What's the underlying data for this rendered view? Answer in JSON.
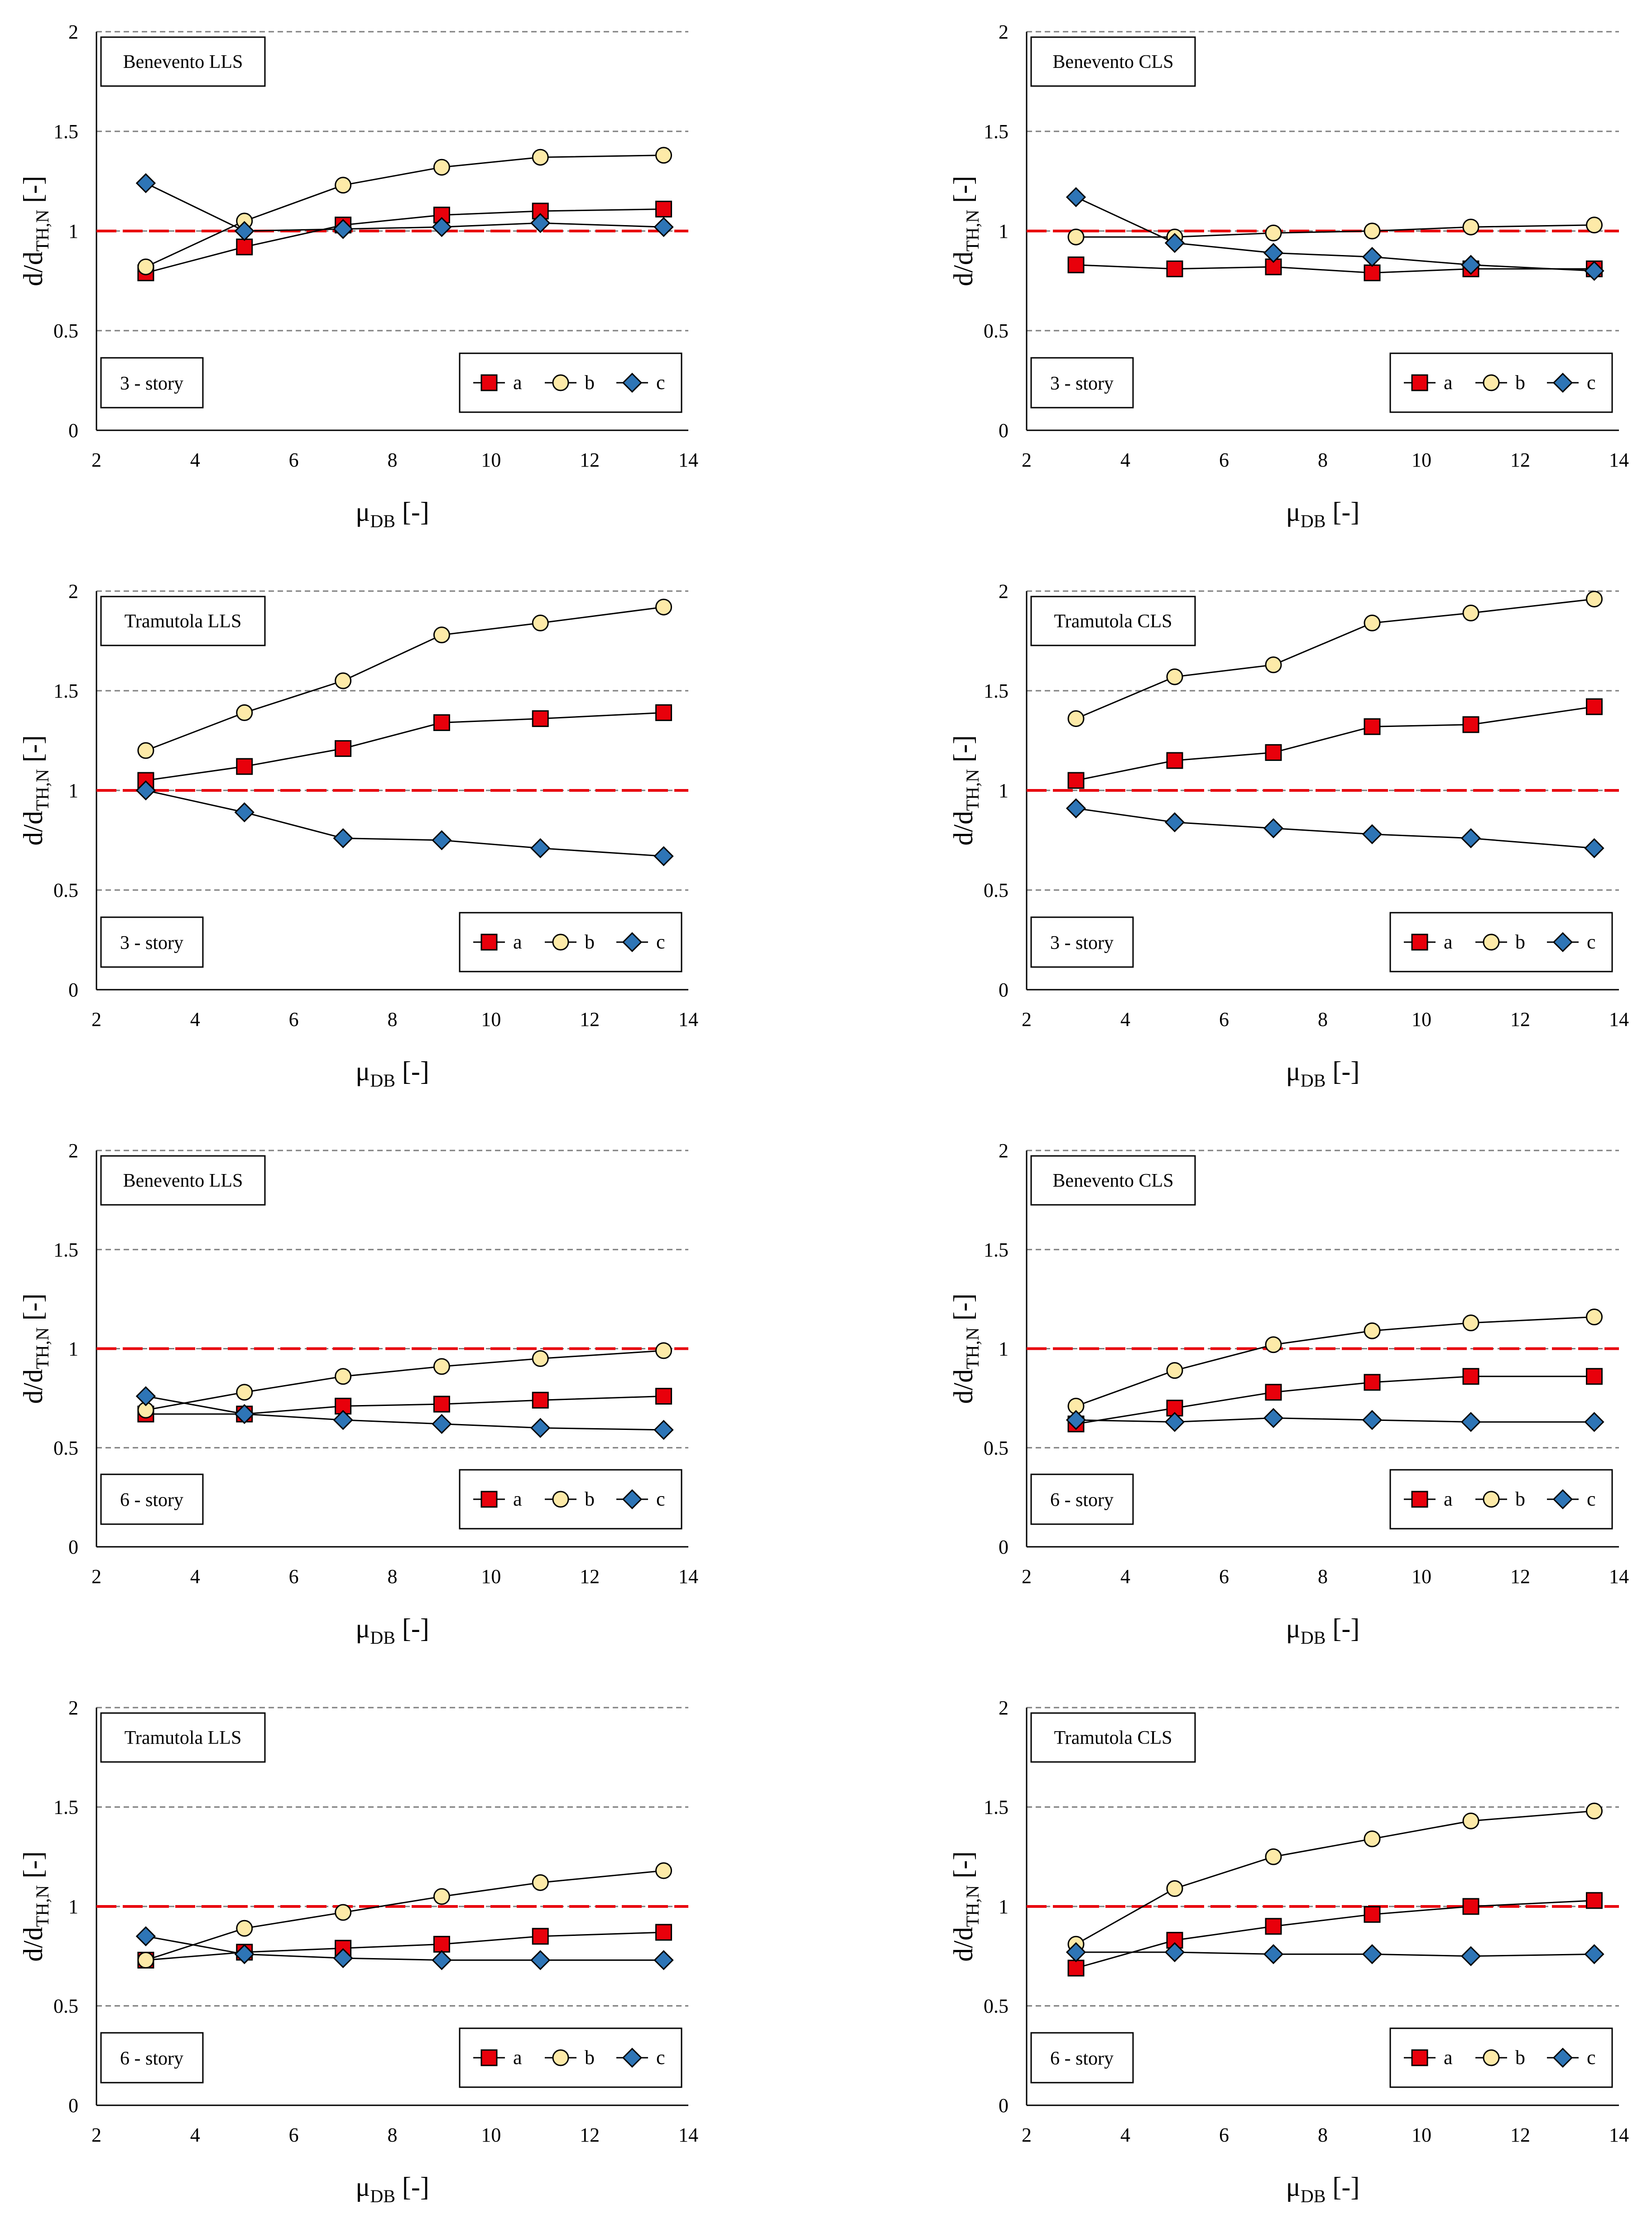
{
  "figure": {
    "xlabel": {
      "symbol": "μ",
      "subscript": "DB",
      "unit": " [-]"
    },
    "ylabel": {
      "symbol": "d/d",
      "subscript": "TH,N",
      "unit": " [-]"
    },
    "reference_line_value": 1
  },
  "colors": {
    "a": "#e8000b",
    "b": "#fdeaa8",
    "c": "#2e75b6",
    "reference": "#e8000b",
    "grid": "#7f7f7f"
  },
  "chart_data": [
    {
      "type": "line",
      "title": "Benevento LLS",
      "subtitle": "3 - story",
      "xlim": [
        2,
        14
      ],
      "ylim": [
        0,
        2
      ],
      "xticks": [
        "2",
        "4",
        "6",
        "8",
        "10",
        "12",
        "14"
      ],
      "yticks": [
        "0",
        "0.5",
        "1",
        "1.5",
        "2"
      ],
      "x": [
        3,
        5,
        7,
        9,
        11,
        13.5
      ],
      "series": [
        {
          "name": "a",
          "marker": "square",
          "values": [
            0.79,
            0.92,
            1.03,
            1.08,
            1.1,
            1.11
          ]
        },
        {
          "name": "b",
          "marker": "circle",
          "values": [
            0.82,
            1.05,
            1.23,
            1.32,
            1.37,
            1.38
          ]
        },
        {
          "name": "c",
          "marker": "diamond",
          "values": [
            1.24,
            1.0,
            1.01,
            1.02,
            1.04,
            1.02
          ]
        }
      ]
    },
    {
      "type": "line",
      "title": "Benevento CLS",
      "subtitle": "3 - story",
      "xlim": [
        2,
        14
      ],
      "ylim": [
        0,
        2
      ],
      "xticks": [
        "2",
        "4",
        "6",
        "8",
        "10",
        "12",
        "14"
      ],
      "yticks": [
        "0",
        "0.5",
        "1",
        "1.5",
        "2"
      ],
      "x": [
        3,
        5,
        7,
        9,
        11,
        13.5
      ],
      "series": [
        {
          "name": "a",
          "marker": "square",
          "values": [
            0.83,
            0.81,
            0.82,
            0.79,
            0.81,
            0.81
          ]
        },
        {
          "name": "b",
          "marker": "circle",
          "values": [
            0.97,
            0.97,
            0.99,
            1.0,
            1.02,
            1.03
          ]
        },
        {
          "name": "c",
          "marker": "diamond",
          "values": [
            1.17,
            0.94,
            0.89,
            0.87,
            0.83,
            0.8
          ]
        }
      ]
    },
    {
      "type": "line",
      "title": "Tramutola LLS",
      "subtitle": "3 - story",
      "xlim": [
        2,
        14
      ],
      "ylim": [
        0,
        2
      ],
      "xticks": [
        "2",
        "4",
        "6",
        "8",
        "10",
        "12",
        "14"
      ],
      "yticks": [
        "0",
        "0.5",
        "1",
        "1.5",
        "2"
      ],
      "x": [
        3,
        5,
        7,
        9,
        11,
        13.5
      ],
      "series": [
        {
          "name": "a",
          "marker": "square",
          "values": [
            1.05,
            1.12,
            1.21,
            1.34,
            1.36,
            1.39
          ]
        },
        {
          "name": "b",
          "marker": "circle",
          "values": [
            1.2,
            1.39,
            1.55,
            1.78,
            1.84,
            1.92
          ]
        },
        {
          "name": "c",
          "marker": "diamond",
          "values": [
            1.0,
            0.89,
            0.76,
            0.75,
            0.71,
            0.67
          ]
        }
      ]
    },
    {
      "type": "line",
      "title": "Tramutola CLS",
      "subtitle": "3 - story",
      "xlim": [
        2,
        14
      ],
      "ylim": [
        0,
        2
      ],
      "xticks": [
        "2",
        "4",
        "6",
        "8",
        "10",
        "12",
        "14"
      ],
      "yticks": [
        "0",
        "0.5",
        "1",
        "1.5",
        "2"
      ],
      "x": [
        3,
        5,
        7,
        9,
        11,
        13.5
      ],
      "series": [
        {
          "name": "a",
          "marker": "square",
          "values": [
            1.05,
            1.15,
            1.19,
            1.32,
            1.33,
            1.42
          ]
        },
        {
          "name": "b",
          "marker": "circle",
          "values": [
            1.36,
            1.57,
            1.63,
            1.84,
            1.89,
            1.96
          ]
        },
        {
          "name": "c",
          "marker": "diamond",
          "values": [
            0.91,
            0.84,
            0.81,
            0.78,
            0.76,
            0.71
          ]
        }
      ]
    },
    {
      "type": "line",
      "title": "Benevento LLS",
      "subtitle": "6 - story",
      "xlim": [
        2,
        14
      ],
      "ylim": [
        0,
        2
      ],
      "xticks": [
        "2",
        "4",
        "6",
        "8",
        "10",
        "12",
        "14"
      ],
      "yticks": [
        "0",
        "0.5",
        "1",
        "1.5",
        "2"
      ],
      "x": [
        3,
        5,
        7,
        9,
        11,
        13.5
      ],
      "series": [
        {
          "name": "a",
          "marker": "square",
          "values": [
            0.67,
            0.67,
            0.71,
            0.72,
            0.74,
            0.76
          ]
        },
        {
          "name": "b",
          "marker": "circle",
          "values": [
            0.69,
            0.78,
            0.86,
            0.91,
            0.95,
            0.99
          ]
        },
        {
          "name": "c",
          "marker": "diamond",
          "values": [
            0.76,
            0.67,
            0.64,
            0.62,
            0.6,
            0.59
          ]
        }
      ]
    },
    {
      "type": "line",
      "title": "Benevento CLS",
      "subtitle": "6 - story",
      "xlim": [
        2,
        14
      ],
      "ylim": [
        0,
        2
      ],
      "xticks": [
        "2",
        "4",
        "6",
        "8",
        "10",
        "12",
        "14"
      ],
      "yticks": [
        "0",
        "0.5",
        "1",
        "1.5",
        "2"
      ],
      "x": [
        3,
        5,
        7,
        9,
        11,
        13.5
      ],
      "series": [
        {
          "name": "a",
          "marker": "square",
          "values": [
            0.62,
            0.7,
            0.78,
            0.83,
            0.86,
            0.86
          ]
        },
        {
          "name": "b",
          "marker": "circle",
          "values": [
            0.71,
            0.89,
            1.02,
            1.09,
            1.13,
            1.16
          ]
        },
        {
          "name": "c",
          "marker": "diamond",
          "values": [
            0.64,
            0.63,
            0.65,
            0.64,
            0.63,
            0.63
          ]
        }
      ]
    },
    {
      "type": "line",
      "title": "Tramutola LLS",
      "subtitle": "6 - story",
      "xlim": [
        2,
        14
      ],
      "ylim": [
        0,
        2
      ],
      "xticks": [
        "2",
        "4",
        "6",
        "8",
        "10",
        "12",
        "14"
      ],
      "yticks": [
        "0",
        "0.5",
        "1",
        "1.5",
        "2"
      ],
      "x": [
        3,
        5,
        7,
        9,
        11,
        13.5
      ],
      "series": [
        {
          "name": "a",
          "marker": "square",
          "values": [
            0.73,
            0.77,
            0.79,
            0.81,
            0.85,
            0.87
          ]
        },
        {
          "name": "b",
          "marker": "circle",
          "values": [
            0.73,
            0.89,
            0.97,
            1.05,
            1.12,
            1.18
          ]
        },
        {
          "name": "c",
          "marker": "diamond",
          "values": [
            0.85,
            0.76,
            0.74,
            0.73,
            0.73,
            0.73
          ]
        }
      ]
    },
    {
      "type": "line",
      "title": "Tramutola CLS",
      "subtitle": "6 - story",
      "xlim": [
        2,
        14
      ],
      "ylim": [
        0,
        2
      ],
      "xticks": [
        "2",
        "4",
        "6",
        "8",
        "10",
        "12",
        "14"
      ],
      "yticks": [
        "0",
        "0.5",
        "1",
        "1.5",
        "2"
      ],
      "x": [
        3,
        5,
        7,
        9,
        11,
        13.5
      ],
      "series": [
        {
          "name": "a",
          "marker": "square",
          "values": [
            0.69,
            0.83,
            0.9,
            0.96,
            1.0,
            1.03
          ]
        },
        {
          "name": "b",
          "marker": "circle",
          "values": [
            0.81,
            1.09,
            1.25,
            1.34,
            1.43,
            1.48
          ]
        },
        {
          "name": "c",
          "marker": "diamond",
          "values": [
            0.77,
            0.77,
            0.76,
            0.76,
            0.75,
            0.76
          ]
        }
      ]
    }
  ]
}
